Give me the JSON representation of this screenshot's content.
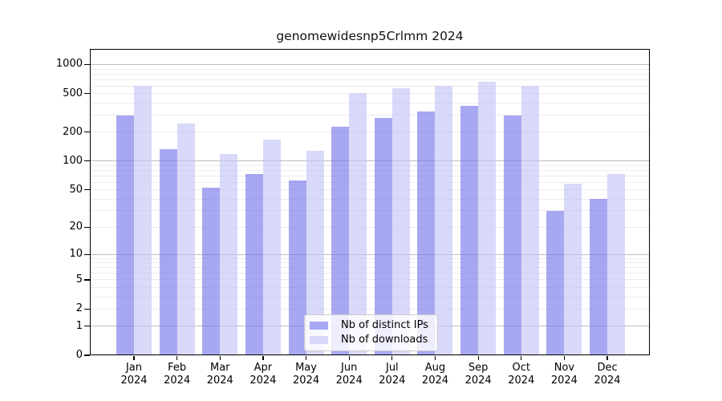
{
  "title": "genomewidesnp5Crlmm 2024",
  "legend": {
    "items": [
      {
        "label": "Nb of distinct IPs",
        "swatch_color": "#a8a8f2"
      },
      {
        "label": "Nb of downloads",
        "swatch_color": "#d9d9f9"
      }
    ]
  },
  "chart_data": {
    "type": "bar",
    "title": "genomewidesnp5Crlmm 2024",
    "categories": [
      "Jan",
      "Feb",
      "Mar",
      "Apr",
      "May",
      "Jun",
      "Jul",
      "Aug",
      "Sep",
      "Oct",
      "Nov",
      "Dec"
    ],
    "x_year_label": "2024",
    "series": [
      {
        "name": "Nb of distinct IPs",
        "key": "ips",
        "values": [
          300,
          133,
          53,
          73,
          63,
          228,
          282,
          325,
          372,
          300,
          30,
          40
        ],
        "fill": "rgba(121,121,235,0.65)",
        "legend_color": "#a8a8f2"
      },
      {
        "name": "Nb of downloads",
        "key": "downloads",
        "values": [
          600,
          245,
          119,
          167,
          129,
          507,
          568,
          598,
          668,
          598,
          58,
          74
        ],
        "fill": "rgba(197,197,246,0.65)",
        "legend_color": "#d9d9f9"
      }
    ],
    "yscale": "log1p",
    "yticks": [
      0,
      1,
      2,
      5,
      10,
      20,
      50,
      100,
      200,
      500,
      1000
    ],
    "minor_gridlines": [
      3,
      4,
      6,
      7,
      8,
      9,
      30,
      40,
      60,
      70,
      80,
      90,
      300,
      400,
      600,
      700,
      800,
      900
    ],
    "ylim": [
      0,
      1450
    ],
    "grid": true,
    "legend_position": "lower-center",
    "colors": {
      "major_grid": "#bdbdbd",
      "minor_grid": "#ececec",
      "axis": "#000000"
    }
  }
}
